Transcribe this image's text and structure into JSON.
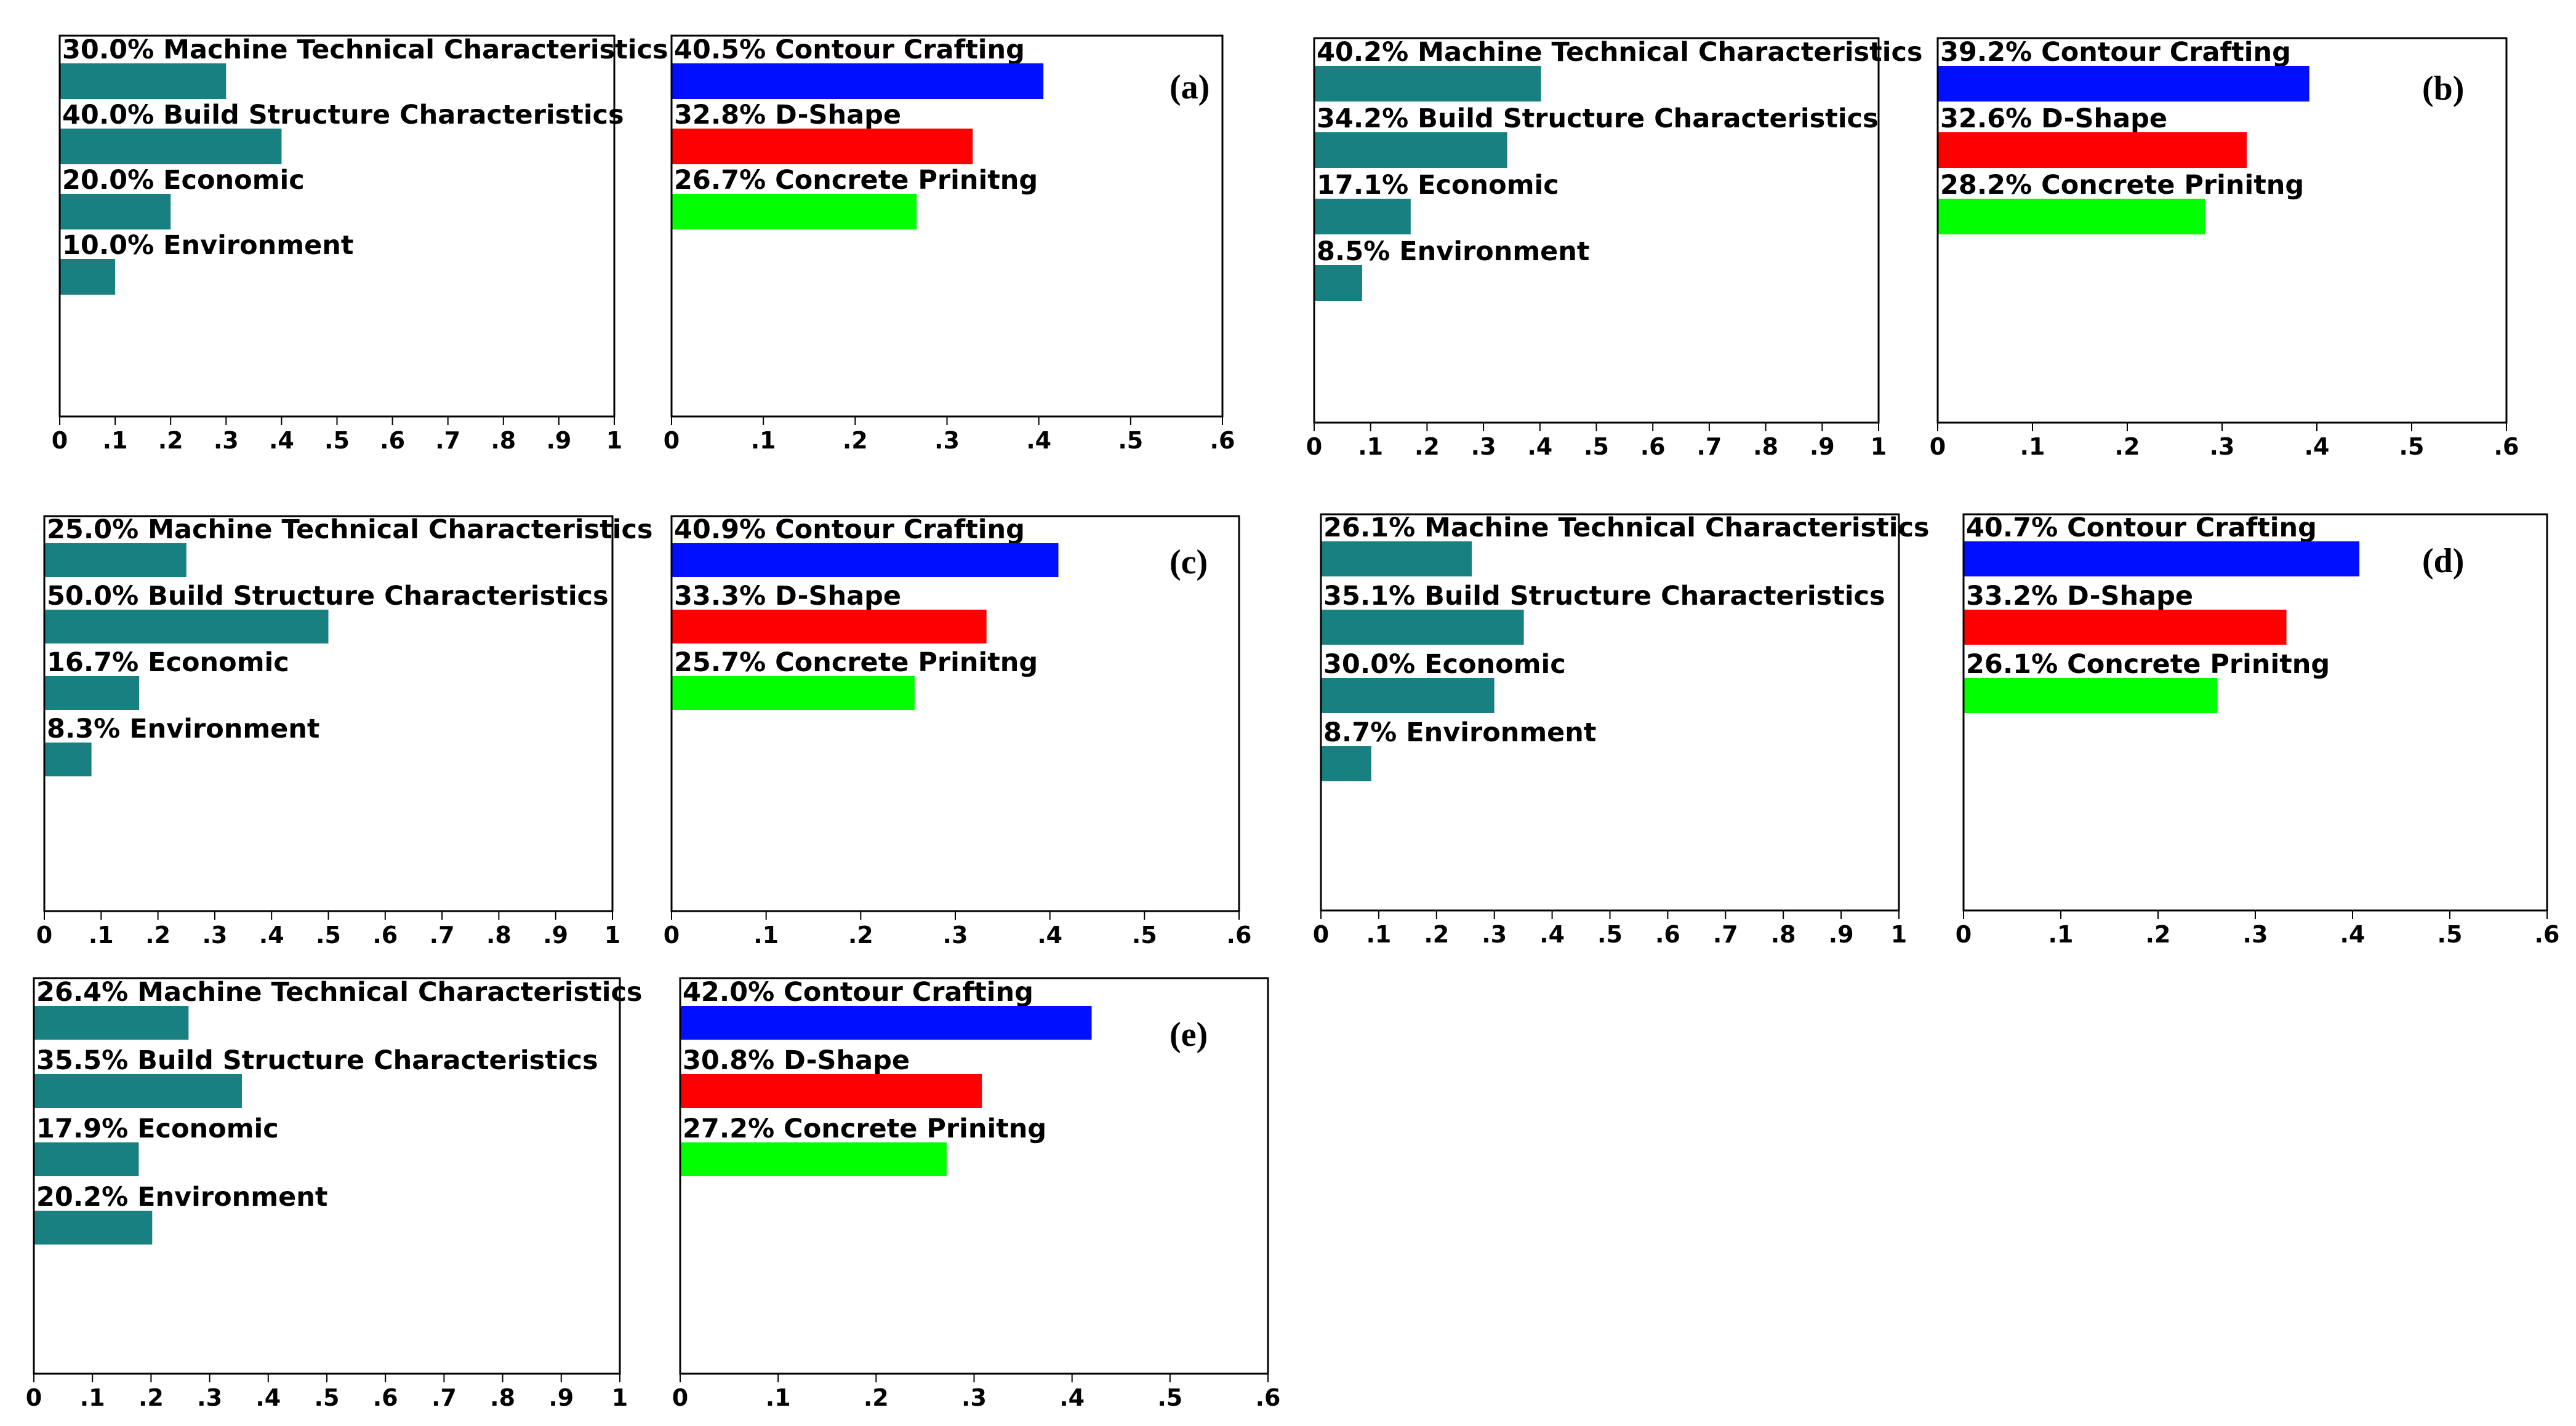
{
  "colors": {
    "criteria_bar": "#188080",
    "contour_crafting": "#0010ff",
    "d_shape": "#ff0000",
    "concrete_printing": "#00ff00",
    "frame": "#000000"
  },
  "panels": [
    {
      "tag": "(a)",
      "criteria": {
        "ticks": [
          "0",
          ".1",
          ".2",
          ".3",
          ".4",
          ".5",
          ".6",
          ".7",
          ".8",
          ".9",
          "1"
        ],
        "xlim": [
          0,
          1
        ],
        "items": [
          {
            "label": "30.0% Machine Technical Characteristics",
            "value": 0.3
          },
          {
            "label": "40.0% Build Structure Characteristics",
            "value": 0.4
          },
          {
            "label": "20.0% Economic",
            "value": 0.2
          },
          {
            "label": "10.0% Environment",
            "value": 0.1
          }
        ]
      },
      "alternatives": {
        "ticks": [
          "0",
          ".1",
          ".2",
          ".3",
          ".4",
          ".5",
          ".6"
        ],
        "xlim": [
          0,
          0.6
        ],
        "items": [
          {
            "label": "40.5% Contour Crafting",
            "value": 0.405
          },
          {
            "label": "32.8% D-Shape",
            "value": 0.328
          },
          {
            "label": "26.7% Concrete Prinitng",
            "value": 0.267
          }
        ]
      }
    },
    {
      "tag": "(b)",
      "criteria": {
        "ticks": [
          "0",
          ".1",
          ".2",
          ".3",
          ".4",
          ".5",
          ".6",
          ".7",
          ".8",
          ".9",
          "1"
        ],
        "xlim": [
          0,
          1
        ],
        "items": [
          {
            "label": "40.2% Machine Technical Characteristics",
            "value": 0.402
          },
          {
            "label": "34.2% Build Structure Characteristics",
            "value": 0.342
          },
          {
            "label": "17.1% Economic",
            "value": 0.171
          },
          {
            "label": "8.5% Environment",
            "value": 0.085
          }
        ]
      },
      "alternatives": {
        "ticks": [
          "0",
          ".1",
          ".2",
          ".3",
          ".4",
          ".5",
          ".6"
        ],
        "xlim": [
          0,
          0.6
        ],
        "items": [
          {
            "label": "39.2% Contour Crafting",
            "value": 0.392
          },
          {
            "label": "32.6% D-Shape",
            "value": 0.326
          },
          {
            "label": "28.2% Concrete Prinitng",
            "value": 0.282
          }
        ]
      }
    },
    {
      "tag": "(c)",
      "criteria": {
        "ticks": [
          "0",
          ".1",
          ".2",
          ".3",
          ".4",
          ".5",
          ".6",
          ".7",
          ".8",
          ".9",
          "1"
        ],
        "xlim": [
          0,
          1
        ],
        "items": [
          {
            "label": "25.0% Machine Technical Characteristics",
            "value": 0.25
          },
          {
            "label": "50.0% Build Structure Characteristics",
            "value": 0.5
          },
          {
            "label": "16.7% Economic",
            "value": 0.167
          },
          {
            "label": "8.3% Environment",
            "value": 0.083
          }
        ]
      },
      "alternatives": {
        "ticks": [
          "0",
          ".1",
          ".2",
          ".3",
          ".4",
          ".5",
          ".6"
        ],
        "xlim": [
          0,
          0.6
        ],
        "items": [
          {
            "label": "40.9% Contour Crafting",
            "value": 0.409
          },
          {
            "label": "33.3% D-Shape",
            "value": 0.333
          },
          {
            "label": "25.7% Concrete Prinitng",
            "value": 0.257
          }
        ]
      }
    },
    {
      "tag": "(d)",
      "criteria": {
        "ticks": [
          "0",
          ".1",
          ".2",
          ".3",
          ".4",
          ".5",
          ".6",
          ".7",
          ".8",
          ".9",
          "1"
        ],
        "xlim": [
          0,
          1
        ],
        "items": [
          {
            "label": "26.1% Machine Technical Characteristics",
            "value": 0.261
          },
          {
            "label": "35.1% Build Structure Characteristics",
            "value": 0.351
          },
          {
            "label": "30.0% Economic",
            "value": 0.3
          },
          {
            "label": "8.7% Environment",
            "value": 0.087
          }
        ]
      },
      "alternatives": {
        "ticks": [
          "0",
          ".1",
          ".2",
          ".3",
          ".4",
          ".5",
          ".6"
        ],
        "xlim": [
          0,
          0.6
        ],
        "items": [
          {
            "label": "40.7% Contour Crafting",
            "value": 0.407
          },
          {
            "label": "33.2% D-Shape",
            "value": 0.332
          },
          {
            "label": "26.1% Concrete Prinitng",
            "value": 0.261
          }
        ]
      }
    },
    {
      "tag": "(e)",
      "criteria": {
        "ticks": [
          "0",
          ".1",
          ".2",
          ".3",
          ".4",
          ".5",
          ".6",
          ".7",
          ".8",
          ".9",
          "1"
        ],
        "xlim": [
          0,
          1
        ],
        "items": [
          {
            "label": "26.4% Machine Technical Characteristics",
            "value": 0.264
          },
          {
            "label": "35.5% Build Structure Characteristics",
            "value": 0.355
          },
          {
            "label": "17.9% Economic",
            "value": 0.179
          },
          {
            "label": "20.2% Environment",
            "value": 0.202
          }
        ]
      },
      "alternatives": {
        "ticks": [
          "0",
          ".1",
          ".2",
          ".3",
          ".4",
          ".5",
          ".6"
        ],
        "xlim": [
          0,
          0.6
        ],
        "items": [
          {
            "label": "42.0% Contour Crafting",
            "value": 0.42
          },
          {
            "label": "30.8% D-Shape",
            "value": 0.308
          },
          {
            "label": "27.2% Concrete Prinitng",
            "value": 0.272
          }
        ]
      }
    }
  ],
  "chart_data": [
    {
      "type": "bar",
      "panel": "(a)",
      "categories": [
        "Machine Technical Characteristics",
        "Build Structure Characteristics",
        "Economic",
        "Environment"
      ],
      "values": [
        0.3,
        0.4,
        0.2,
        0.1
      ],
      "xlim": [
        0,
        1
      ]
    },
    {
      "type": "bar",
      "panel": "(a)",
      "categories": [
        "Contour Crafting",
        "D-Shape",
        "Concrete Prinitng"
      ],
      "values": [
        0.405,
        0.328,
        0.267
      ],
      "xlim": [
        0,
        0.6
      ]
    },
    {
      "type": "bar",
      "panel": "(b)",
      "categories": [
        "Machine Technical Characteristics",
        "Build Structure Characteristics",
        "Economic",
        "Environment"
      ],
      "values": [
        0.402,
        0.342,
        0.171,
        0.085
      ],
      "xlim": [
        0,
        1
      ]
    },
    {
      "type": "bar",
      "panel": "(b)",
      "categories": [
        "Contour Crafting",
        "D-Shape",
        "Concrete Prinitng"
      ],
      "values": [
        0.392,
        0.326,
        0.282
      ],
      "xlim": [
        0,
        0.6
      ]
    },
    {
      "type": "bar",
      "panel": "(c)",
      "categories": [
        "Machine Technical Characteristics",
        "Build Structure Characteristics",
        "Economic",
        "Environment"
      ],
      "values": [
        0.25,
        0.5,
        0.167,
        0.083
      ],
      "xlim": [
        0,
        1
      ]
    },
    {
      "type": "bar",
      "panel": "(c)",
      "categories": [
        "Contour Crafting",
        "D-Shape",
        "Concrete Prinitng"
      ],
      "values": [
        0.409,
        0.333,
        0.257
      ],
      "xlim": [
        0,
        0.6
      ]
    },
    {
      "type": "bar",
      "panel": "(d)",
      "categories": [
        "Machine Technical Characteristics",
        "Build Structure Characteristics",
        "Economic",
        "Environment"
      ],
      "values": [
        0.261,
        0.351,
        0.3,
        0.087
      ],
      "xlim": [
        0,
        1
      ]
    },
    {
      "type": "bar",
      "panel": "(d)",
      "categories": [
        "Contour Crafting",
        "D-Shape",
        "Concrete Prinitng"
      ],
      "values": [
        0.407,
        0.332,
        0.261
      ],
      "xlim": [
        0,
        0.6
      ]
    },
    {
      "type": "bar",
      "panel": "(e)",
      "categories": [
        "Machine Technical Characteristics",
        "Build Structure Characteristics",
        "Economic",
        "Environment"
      ],
      "values": [
        0.264,
        0.355,
        0.179,
        0.202
      ],
      "xlim": [
        0,
        1
      ]
    },
    {
      "type": "bar",
      "panel": "(e)",
      "categories": [
        "Contour Crafting",
        "D-Shape",
        "Concrete Prinitng"
      ],
      "values": [
        0.42,
        0.308,
        0.272
      ],
      "xlim": [
        0,
        0.6
      ]
    }
  ]
}
